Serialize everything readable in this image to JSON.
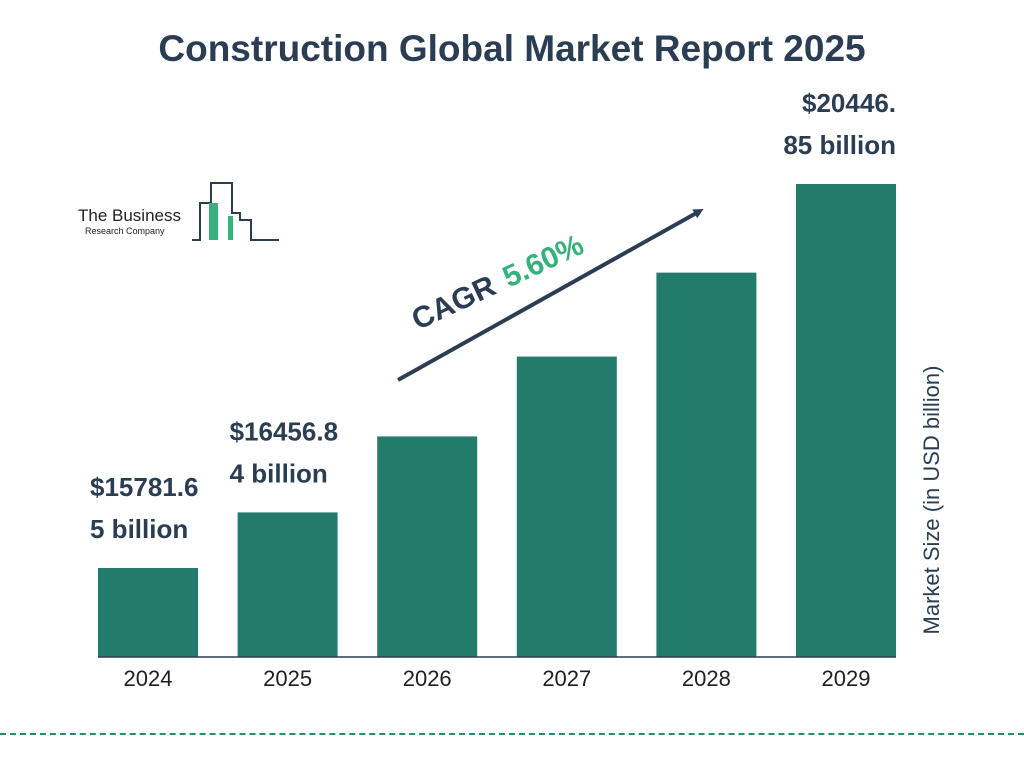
{
  "title": "Construction Global Market Report 2025",
  "logo": {
    "line1": "The Business",
    "line2": "Research Company"
  },
  "colors": {
    "bar": "#227b6b",
    "text_dark": "#2b3d52",
    "accent_green": "#35b27b",
    "arrow": "#2b3d52"
  },
  "cagr": {
    "label": "CAGR",
    "value": "5.60%"
  },
  "chart_data": {
    "type": "bar",
    "title": "Construction Global Market Report 2025",
    "ylabel": "Market Size (in USD billion)",
    "xlabel": "",
    "categories": [
      "2024",
      "2025",
      "2026",
      "2027",
      "2028",
      "2029"
    ],
    "values": [
      15781.65,
      16456.84,
      17380,
      18350,
      19370,
      20446.85
    ],
    "ylim": [
      14700,
      20446.85
    ],
    "data_labels": [
      {
        "index": 0,
        "line1": "$15781.6",
        "line2": "5 billion"
      },
      {
        "index": 1,
        "line1": "$16456.8",
        "line2": "4 billion"
      },
      {
        "index": 5,
        "line1": "$20446.",
        "line2": "85 billion"
      }
    ],
    "grid": false,
    "legend": "none"
  }
}
